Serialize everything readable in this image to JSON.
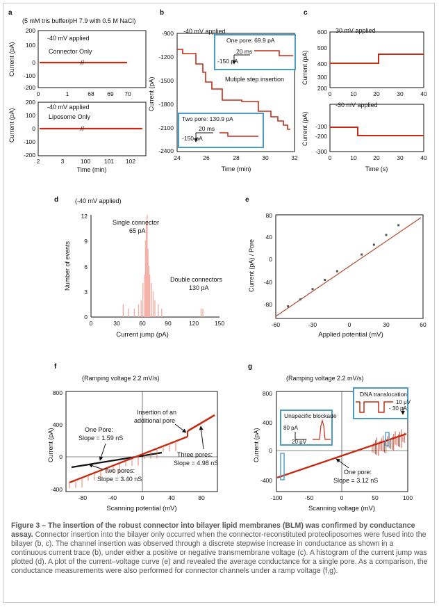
{
  "panel_letters": [
    "a",
    "b",
    "c",
    "d",
    "e",
    "f",
    "g"
  ],
  "panel_a": {
    "buffer_note": "(5 mM tris buffer/pH 7.9 with 0.5 M NaCl)",
    "top": {
      "voltage_label": "-40 mV applied",
      "trace_label": "Connector Only",
      "ylabel": "Current (pA)",
      "yticks": [
        "200",
        "100",
        "0",
        "-100",
        "-200"
      ],
      "xticks": [
        "0",
        "1",
        "68",
        "69",
        "70"
      ]
    },
    "bottom": {
      "voltage_label": "-40 mV applied",
      "trace_label": "Liposome Only",
      "ylabel": "Current (pA)",
      "yticks": [
        "200",
        "100",
        "0",
        "-100",
        "-200"
      ],
      "xticks": [
        "2",
        "3",
        "100",
        "101",
        "102"
      ],
      "xlabel": "Time (min)"
    }
  },
  "panel_b": {
    "voltage_label": "-40 mV applied",
    "ylabel": "Current (pA)",
    "xlabel": "Time (min)",
    "yticks": [
      "-900",
      "-1200",
      "-1500",
      "-1800",
      "-2100",
      "-2400"
    ],
    "xticks": [
      "24",
      "26",
      "28",
      "30",
      "32"
    ],
    "inset_one": {
      "title": "One pore: 69.9 pA",
      "time_bar": "20 ms",
      "current_bar": "-150 pA"
    },
    "inset_two": {
      "title": "Two pore: 130.9 pA",
      "time_bar": "20 ms",
      "current_bar": "-150 pA"
    },
    "annotation": "Mutiple step insertion"
  },
  "panel_c": {
    "top": {
      "voltage_label": "30 mV applied",
      "ylabel": "Current (pA)",
      "yticks": [
        "600",
        "500",
        "400",
        "300",
        "200"
      ],
      "xticks": [
        "0",
        "10",
        "20",
        "30",
        "40"
      ]
    },
    "bottom": {
      "voltage_label": "-30 mV applied",
      "ylabel": "Current (pA)",
      "yticks": [
        "-100",
        "-200",
        "-300"
      ],
      "xticks": [
        "0",
        "10",
        "20",
        "30",
        "40"
      ],
      "xlabel": "Time (s)"
    }
  },
  "panel_d": {
    "voltage_label": "(-40 mV applied)",
    "ylabel": "Number of events",
    "xlabel": "Current jump (pA)",
    "yticks": [
      "12",
      "9",
      "6",
      "3",
      "0"
    ],
    "xticks": [
      "0",
      "30",
      "60",
      "90",
      "120",
      "150"
    ],
    "peak1_label": "Single connector",
    "peak1_value": "65 pA",
    "peak2_label": "Double connectors",
    "peak2_value": "130 pA"
  },
  "panel_e": {
    "ylabel": "Current (pA) / Pore",
    "xlabel": "Applied potential (mV)",
    "yticks": [
      "80",
      "40",
      "0",
      "-40",
      "-80"
    ],
    "xticks": [
      "-60",
      "-30",
      "0",
      "30",
      "60"
    ]
  },
  "panel_f": {
    "ramp_label": "(Ramping voltage 2.2 mV/s)",
    "ylabel": "Current (pA)",
    "xlabel": "Scanning potential (mV)",
    "yticks": [
      "800",
      "400",
      "0",
      "-400"
    ],
    "xticks": [
      "-80",
      "-40",
      "0",
      "40",
      "80"
    ],
    "one_pore": "One Pore:",
    "one_slope": "Slope = 1.59 nS",
    "two_pores": "Two pores:",
    "two_slope": "Slope = 3.40 nS",
    "three_pores": "Three pores:",
    "three_slope": "Slope = 4.98 nS",
    "insertion_1": "Insertion of an",
    "insertion_2": "additional pore"
  },
  "panel_g": {
    "ramp_label": "(Ramping voltage 2.2 mV/s)",
    "ylabel": "Current (pA)",
    "xlabel": "Scanning voltage (mV)",
    "yticks": [
      "800",
      "400",
      "0",
      "-400"
    ],
    "xticks": [
      "-100",
      "-50",
      "0",
      "50",
      "100"
    ],
    "dna_title": "DNA translocation",
    "dna_v": "10 μV",
    "dna_i": "- 30 pA",
    "block_title": "Unspecific blockade",
    "block_i": "80 pA",
    "block_v": "20 μV",
    "one_pore": "One pore:",
    "one_slope": "Slope = 3.12 nS"
  },
  "caption": {
    "bold": "Figure 3 – The insertion of the robust connector into bilayer lipid membranes (BLM) was confirmed by conductance assay.",
    "text": " Connector insertion into the bilayer only occurred when the connector-reconstituted proteoliposomes were fused into the bilayer (b, c). The channel insertion was observed through a discrete stepwise increase in conductance as shown in a continuous current trace (b), under either a positive or negative transmembrane voltage (c). A histogram of the current jump was plotted (d). A plot of the current–voltage curve (e) and revealed the average conductance for a single pore. As a comparison, the conductance measurements were also performed for connector channels under a ramp voltage (f,g)."
  },
  "colors": {
    "trace": "#c62a12",
    "hist": "#f3b0a6",
    "inset_border": "#4b9cc4",
    "line": "#111111"
  }
}
